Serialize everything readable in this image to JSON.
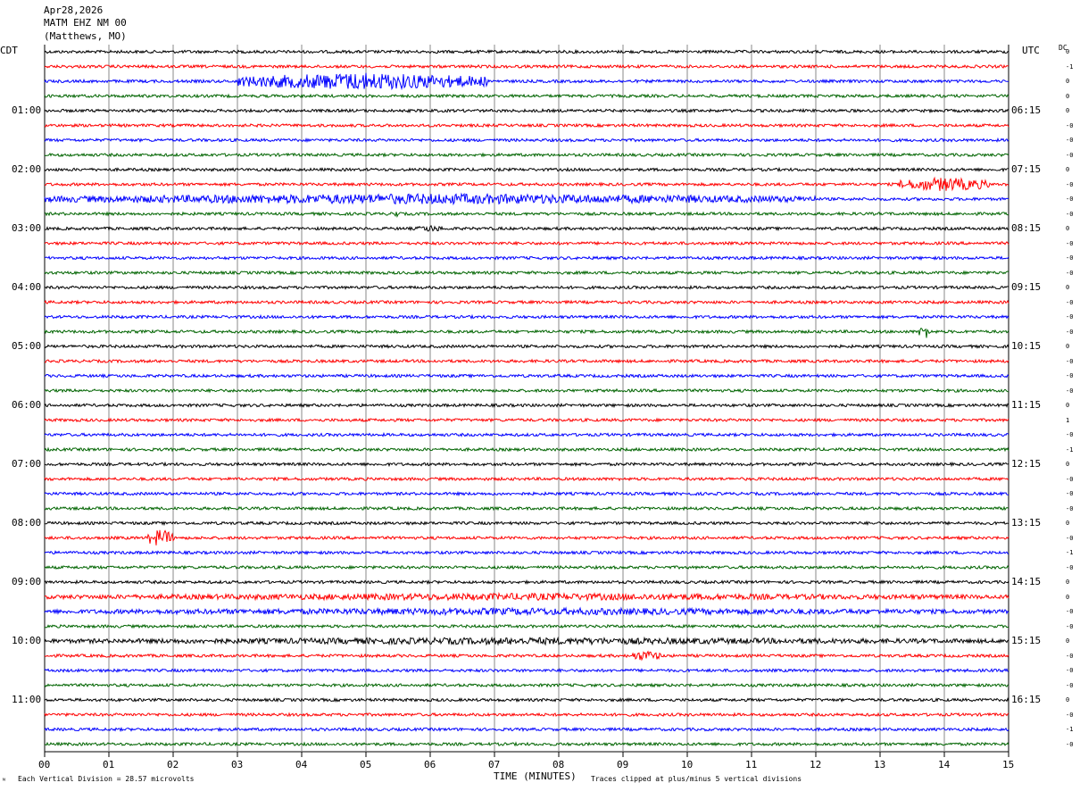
{
  "header": {
    "date": "Apr28,2026",
    "station": "MATM EHZ NM 00",
    "location": "(Matthews, MO)"
  },
  "left_timezone": "CDT",
  "right_timezone": "UTC",
  "dc_label": "DC",
  "footer": {
    "vertical_division": "Each Vertical Division =   28.57 microvolts",
    "clip_note": "Traces clipped at plus/minus 5 vertical divisions",
    "corner_mark": "ᴺ"
  },
  "chart_data": {
    "type": "line",
    "title": "MATM EHZ NM 00",
    "xlabel": "TIME (MINUTES)",
    "ylabel": "",
    "x_ticks": [
      "00",
      "01",
      "02",
      "03",
      "04",
      "05",
      "06",
      "07",
      "08",
      "09",
      "10",
      "11",
      "12",
      "13",
      "14",
      "15"
    ],
    "xlim": [
      0,
      15
    ],
    "trace_minutes": 15,
    "trace_count": 48,
    "trace_colors": [
      "#000000",
      "#ff0000",
      "#0000ff",
      "#006400"
    ],
    "left_hour_labels": [
      "01:00",
      "02:00",
      "03:00",
      "04:00",
      "05:00",
      "06:00",
      "07:00",
      "08:00",
      "09:00",
      "10:00",
      "11:00"
    ],
    "right_hour_labels": [
      "06:15",
      "07:15",
      "08:15",
      "09:15",
      "10:15",
      "11:15",
      "12:15",
      "13:15",
      "14:15",
      "15:15",
      "16:15"
    ],
    "dc_offsets": [
      "0",
      "-1",
      "0",
      "0",
      "0",
      "-0",
      "-0",
      "-0",
      "0",
      "-0",
      "-0",
      "-0",
      "0",
      "-0",
      "-0",
      "-0",
      "0",
      "-0",
      "-0",
      "-0",
      "0",
      "-0",
      "-0",
      "-0",
      "0",
      "1",
      "-0",
      "-1",
      "0",
      "-0",
      "-0",
      "-0",
      "0",
      "-0",
      "-1",
      "-0",
      "0",
      "0",
      "-0",
      "-0",
      "0",
      "-0",
      "-0",
      "-0",
      "0",
      "-0",
      "-1",
      "-0"
    ],
    "events": [
      {
        "trace": 2,
        "start_min": 3.0,
        "end_min": 6.9,
        "amplitude": 5
      },
      {
        "trace": 9,
        "start_min": 13.3,
        "end_min": 14.7,
        "amplitude": 4
      },
      {
        "trace": 10,
        "start_min": 0.0,
        "end_min": 12.0,
        "amplitude": 3
      },
      {
        "trace": 11,
        "start_min": 5.4,
        "end_min": 5.5,
        "amplitude": 3
      },
      {
        "trace": 12,
        "start_min": 5.8,
        "end_min": 6.2,
        "amplitude": 2
      },
      {
        "trace": 19,
        "start_min": 13.6,
        "end_min": 13.8,
        "amplitude": 4
      },
      {
        "trace": 33,
        "start_min": 1.6,
        "end_min": 2.0,
        "amplitude": 5
      },
      {
        "trace": 37,
        "start_min": 0.0,
        "end_min": 15.0,
        "amplitude": 2
      },
      {
        "trace": 38,
        "start_min": 0.0,
        "end_min": 15.0,
        "amplitude": 2
      },
      {
        "trace": 40,
        "start_min": 0.0,
        "end_min": 15.0,
        "amplitude": 2
      },
      {
        "trace": 41,
        "start_min": 9.1,
        "end_min": 9.6,
        "amplitude": 3
      }
    ]
  }
}
